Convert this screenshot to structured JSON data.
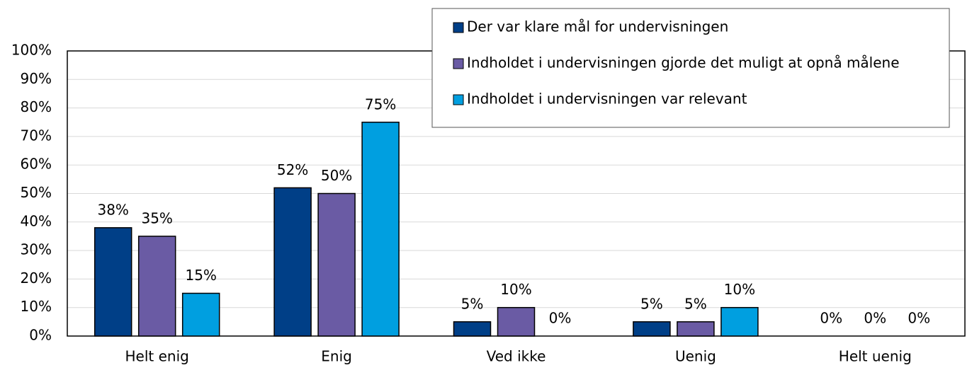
{
  "chart_data": {
    "type": "bar",
    "categories": [
      "Helt enig",
      "Enig",
      "Ved ikke",
      "Uenig",
      "Helt uenig"
    ],
    "series": [
      {
        "name": "Der var klare mål for undervisningen",
        "color": "#003f87",
        "values": [
          38,
          52,
          5,
          5,
          0
        ],
        "value_labels": [
          "38%",
          "52%",
          "5%",
          "5%",
          "0%"
        ]
      },
      {
        "name": "Indholdet i undervisningen gjorde det muligt at opnå målene",
        "color": "#6a5ba4",
        "values": [
          35,
          50,
          10,
          5,
          0
        ],
        "value_labels": [
          "35%",
          "50%",
          "10%",
          "5%",
          "0%"
        ]
      },
      {
        "name": "Indholdet i undervisningen var relevant",
        "color": "#009fe0",
        "values": [
          15,
          75,
          0,
          10,
          0
        ],
        "value_labels": [
          "15%",
          "75%",
          "0%",
          "10%",
          "0%"
        ]
      }
    ],
    "ylim": [
      0,
      100
    ],
    "yticks": [
      {
        "value": 0,
        "label": "0%"
      },
      {
        "value": 10,
        "label": "10%"
      },
      {
        "value": 20,
        "label": "20%"
      },
      {
        "value": 30,
        "label": "30%"
      },
      {
        "value": 40,
        "label": "40%"
      },
      {
        "value": 50,
        "label": "50%"
      },
      {
        "value": 60,
        "label": "60%"
      },
      {
        "value": 70,
        "label": "70%"
      },
      {
        "value": 80,
        "label": "80%"
      },
      {
        "value": 90,
        "label": "90%"
      },
      {
        "value": 100,
        "label": "100%"
      }
    ],
    "grid": true,
    "legend": "top-right"
  }
}
